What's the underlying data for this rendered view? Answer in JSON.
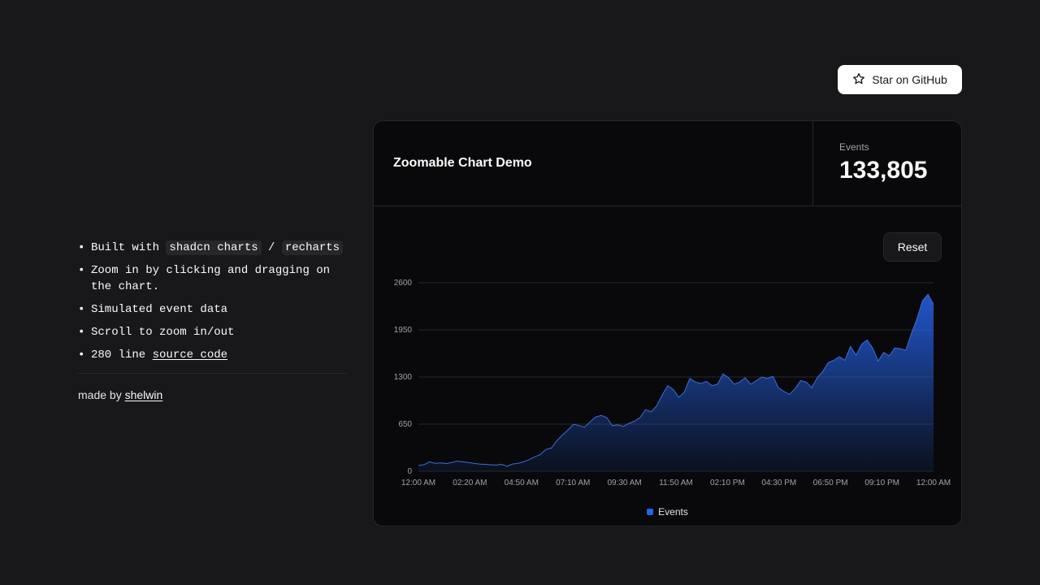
{
  "header": {
    "github_label": "Star on GitHub",
    "github_icon": "star-icon"
  },
  "sidebar": {
    "features": {
      "built_with_prefix": "Built with",
      "shadcn": "shadcn charts",
      "separator": "/",
      "recharts": "recharts",
      "zoom": "Zoom in by clicking and dragging on the chart.",
      "simulated": "Simulated event data",
      "scroll": "Scroll to zoom in/out",
      "source_prefix": "280 line",
      "source_link": "source code"
    },
    "made_by_prefix": "made by",
    "made_by_link": "shelwin"
  },
  "card": {
    "title": "Zoomable Chart Demo",
    "stat_label": "Events",
    "stat_value": "133,805",
    "reset_label": "Reset",
    "legend_label": "Events"
  },
  "colors": {
    "accent": "#2563eb",
    "background": "#18181b",
    "card": "#09090b"
  },
  "chart_data": {
    "type": "area",
    "xlabel": "",
    "ylabel": "",
    "ylim": [
      0,
      2600
    ],
    "yticks": [
      "0",
      "650",
      "1300",
      "1950",
      "2600"
    ],
    "xticks": [
      "12:00 AM",
      "02:20 AM",
      "04:50 AM",
      "07:10 AM",
      "09:30 AM",
      "11:50 AM",
      "02:10 PM",
      "04:30 PM",
      "06:50 PM",
      "09:10 PM",
      "12:00 AM"
    ],
    "grid": true,
    "legend": "bottom-center",
    "series": [
      {
        "name": "Events",
        "values": [
          80,
          90,
          130,
          110,
          115,
          105,
          120,
          140,
          130,
          120,
          110,
          100,
          95,
          90,
          85,
          95,
          70,
          100,
          110,
          130,
          160,
          200,
          230,
          300,
          320,
          420,
          500,
          570,
          650,
          630,
          610,
          680,
          750,
          770,
          740,
          630,
          640,
          620,
          660,
          690,
          740,
          850,
          820,
          900,
          1050,
          1180,
          1130,
          1020,
          1090,
          1280,
          1230,
          1210,
          1240,
          1180,
          1200,
          1340,
          1290,
          1200,
          1230,
          1290,
          1200,
          1250,
          1300,
          1280,
          1310,
          1150,
          1100,
          1060,
          1140,
          1250,
          1230,
          1150,
          1290,
          1380,
          1500,
          1530,
          1580,
          1530,
          1720,
          1600,
          1750,
          1810,
          1700,
          1520,
          1640,
          1590,
          1700,
          1690,
          1670,
          1900,
          2100,
          2350,
          2440,
          2300
        ]
      }
    ]
  }
}
